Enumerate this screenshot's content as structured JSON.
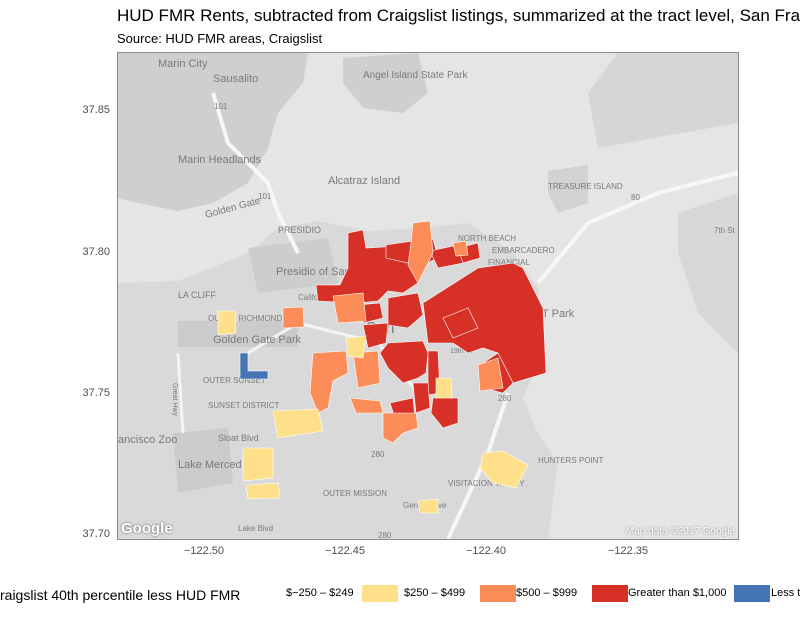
{
  "title": "HUD FMR Rents, subtracted from Craigslist listings, summarized at the tract level, San Fra",
  "subtitle": "Source: HUD FMR areas, Craigslist",
  "axes": {
    "y_ticks": [
      "37.85",
      "37.80",
      "37.75",
      "37.70"
    ],
    "x_ticks": [
      "−122.50",
      "−122.45",
      "−122.40",
      "−122.35"
    ]
  },
  "basemap": {
    "labels": [
      "Marin City",
      "Sausalito",
      "Angel Island State Park",
      "Alcatraz Island",
      "TREASURE ISLAND",
      "Golden Gate",
      "Marin Headlands",
      "PRESIDIO",
      "Presidio of San Francisco",
      "NORTH BEACH",
      "EMBARCADERO",
      "FINANCIAL",
      "LA CLIFF",
      "OUTER RICHMOND",
      "Golden Gate Park",
      "California",
      "San",
      "T&T Park",
      "OUTER SUNSET",
      "SUNSET DISTRICT",
      "Great Hwy",
      "Sloat Blvd",
      "ancisco Zoo",
      "Lake Merced Park",
      "OUTER MISSION",
      "HUNTERS POINT",
      "VISITACION VALLEY",
      "Geneva Ave",
      "Lake Blvd",
      "19th St",
      "7th St",
      "101",
      "101",
      "80",
      "280",
      "280",
      "280"
    ],
    "google_logo": "Google",
    "attribution": "Map data ©2017 Google"
  },
  "legend": {
    "title": "raigslist 40th percentile less HUD FMR",
    "items": [
      {
        "label": "$−250 – $249",
        "color": "#fee08b"
      },
      {
        "label": "$250 – $499",
        "color": "#fc8d59"
      },
      {
        "label": "$500 – $999",
        "color": "#d73027"
      },
      {
        "label": "Greater than $1,000",
        "color": "#4575b4"
      },
      {
        "label": "Less t",
        "color": ""
      }
    ]
  },
  "map_data": {
    "category_colors": {
      "r1": "#fee08b",
      "r2": "#fc8d59",
      "r3": "#d73027",
      "r4": "#4575b4"
    }
  }
}
